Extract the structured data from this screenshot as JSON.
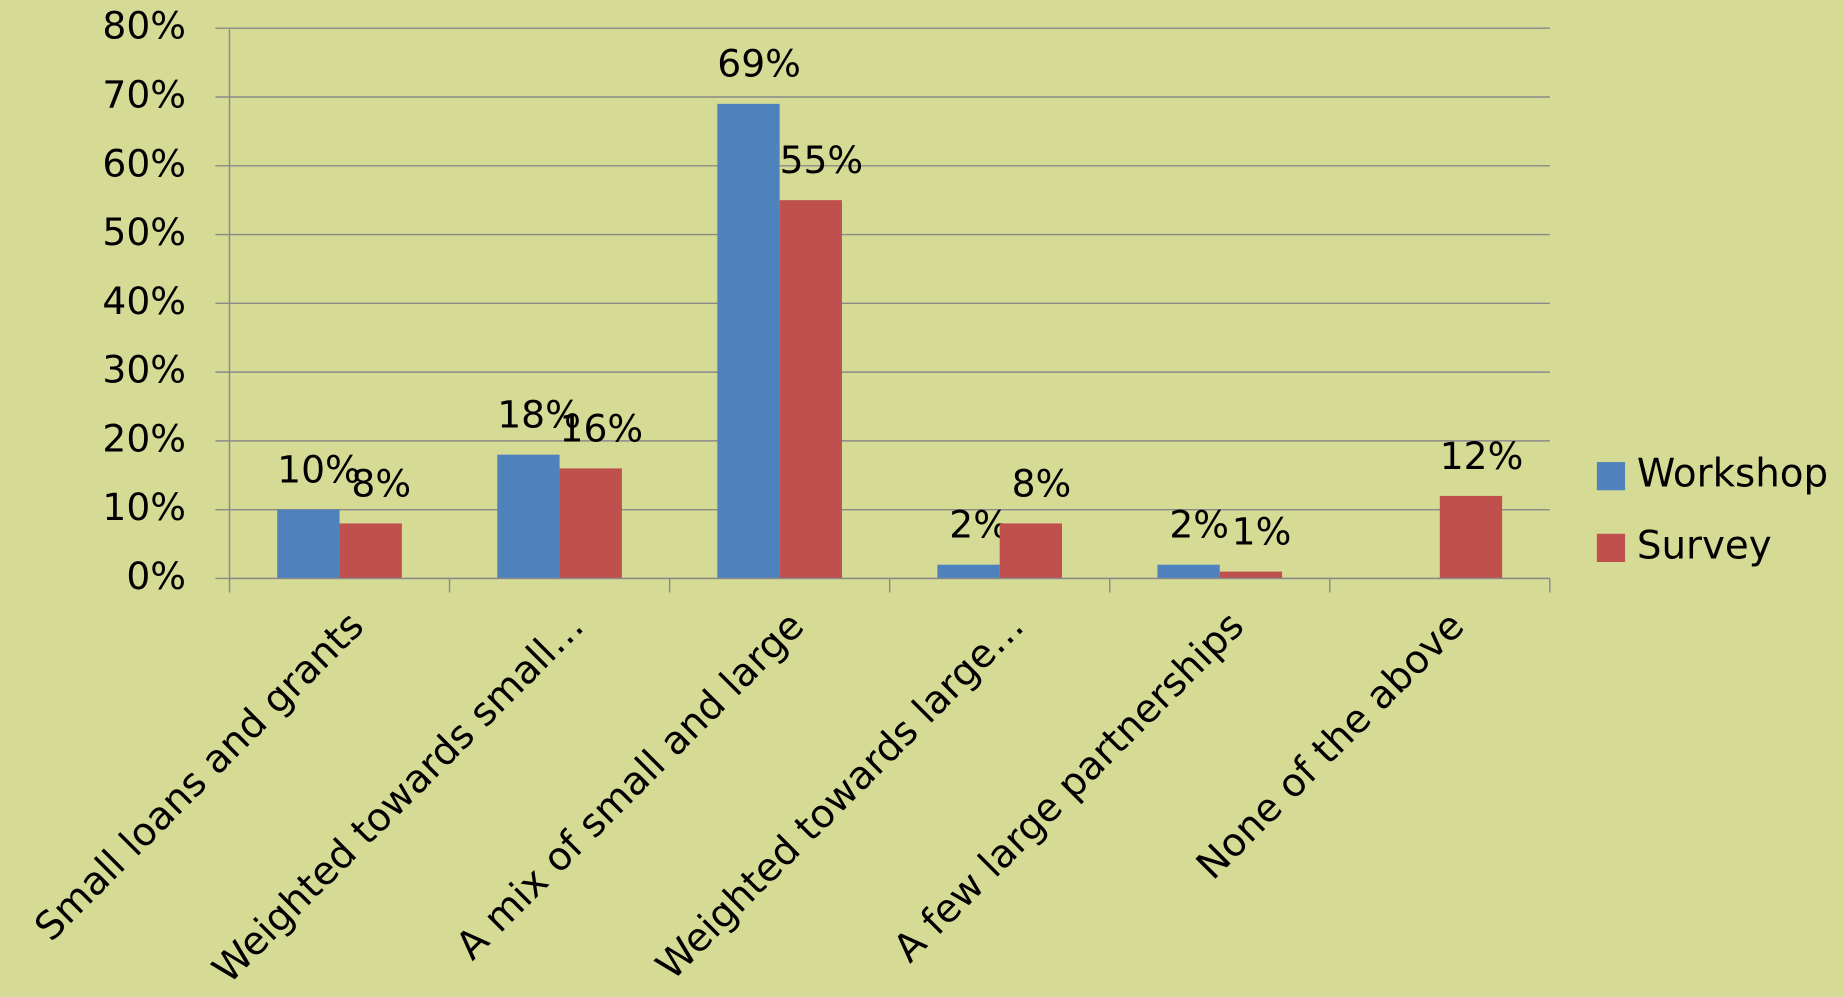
{
  "chart_data": {
    "type": "bar",
    "categories": [
      "Small loans and grants",
      "Weighted towards small…",
      "A mix of small and large",
      "Weighted towards large…",
      "A few large partnerships",
      "None of the above"
    ],
    "series": [
      {
        "name": "Workshop",
        "color": "#4f81bd",
        "values": [
          10,
          18,
          69,
          2,
          2,
          null
        ],
        "value_labels": [
          "10%",
          "18%",
          "69%",
          "2%",
          "2%",
          null
        ]
      },
      {
        "name": "Survey",
        "color": "#c0504d",
        "values": [
          8,
          16,
          55,
          8,
          1,
          12
        ],
        "value_labels": [
          "8%",
          "16%",
          "55%",
          "8%",
          "1%",
          "12%"
        ]
      }
    ],
    "ylim": [
      0,
      80
    ],
    "yticks": [
      {
        "value": 0,
        "label": "0%"
      },
      {
        "value": 10,
        "label": "10%"
      },
      {
        "value": 20,
        "label": "20%"
      },
      {
        "value": 30,
        "label": "30%"
      },
      {
        "value": 40,
        "label": "40%"
      },
      {
        "value": 50,
        "label": "50%"
      },
      {
        "value": 60,
        "label": "60%"
      },
      {
        "value": 70,
        "label": "70%"
      },
      {
        "value": 80,
        "label": "80%"
      }
    ],
    "grid": true,
    "legend": "right"
  }
}
